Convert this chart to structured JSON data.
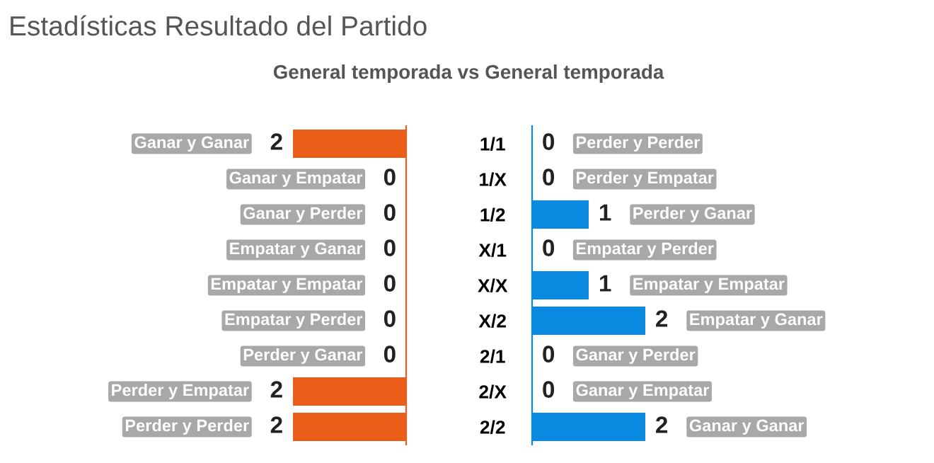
{
  "chart_data": [
    {
      "type": "bar",
      "orientation": "horizontal",
      "title": "Estadísticas Resultado del Partido",
      "subtitle": "General temporada vs General temporada",
      "categories": [
        "1/1",
        "1/X",
        "1/2",
        "X/1",
        "X/X",
        "X/2",
        "2/1",
        "2/X",
        "2/2"
      ],
      "values": [
        2,
        0,
        0,
        0,
        0,
        0,
        0,
        2,
        2
      ],
      "color": "#eb5e1a",
      "data_labels": true,
      "tick_labels": "y",
      "annotations": [
        "Ganar y Ganar",
        "Ganar y Empatar",
        "Ganar y Perder",
        "Empatar y Ganar",
        "Empatar y Empatar",
        "Empatar y Perder",
        "Perder y Ganar",
        "Perder y Empatar",
        "Perder y Perder"
      ]
    },
    {
      "type": "bar",
      "orientation": "horizontal",
      "categories": [
        null,
        null,
        null,
        null,
        null,
        null,
        null,
        null,
        null
      ],
      "values": [
        0,
        0,
        1,
        0,
        1,
        2,
        0,
        0,
        2
      ],
      "color": "#0a8ae0",
      "data_labels": true,
      "tick_labels": false,
      "annotations": [
        "Perder y Perder",
        "Perder y Empatar",
        "Perder y Ganar",
        "Empatar y Perder",
        "Empatar y Empatar",
        "Empatar y Ganar",
        "Ganar y Perder",
        "Ganar y Empatar",
        "Ganar y Ganar"
      ]
    }
  ]
}
